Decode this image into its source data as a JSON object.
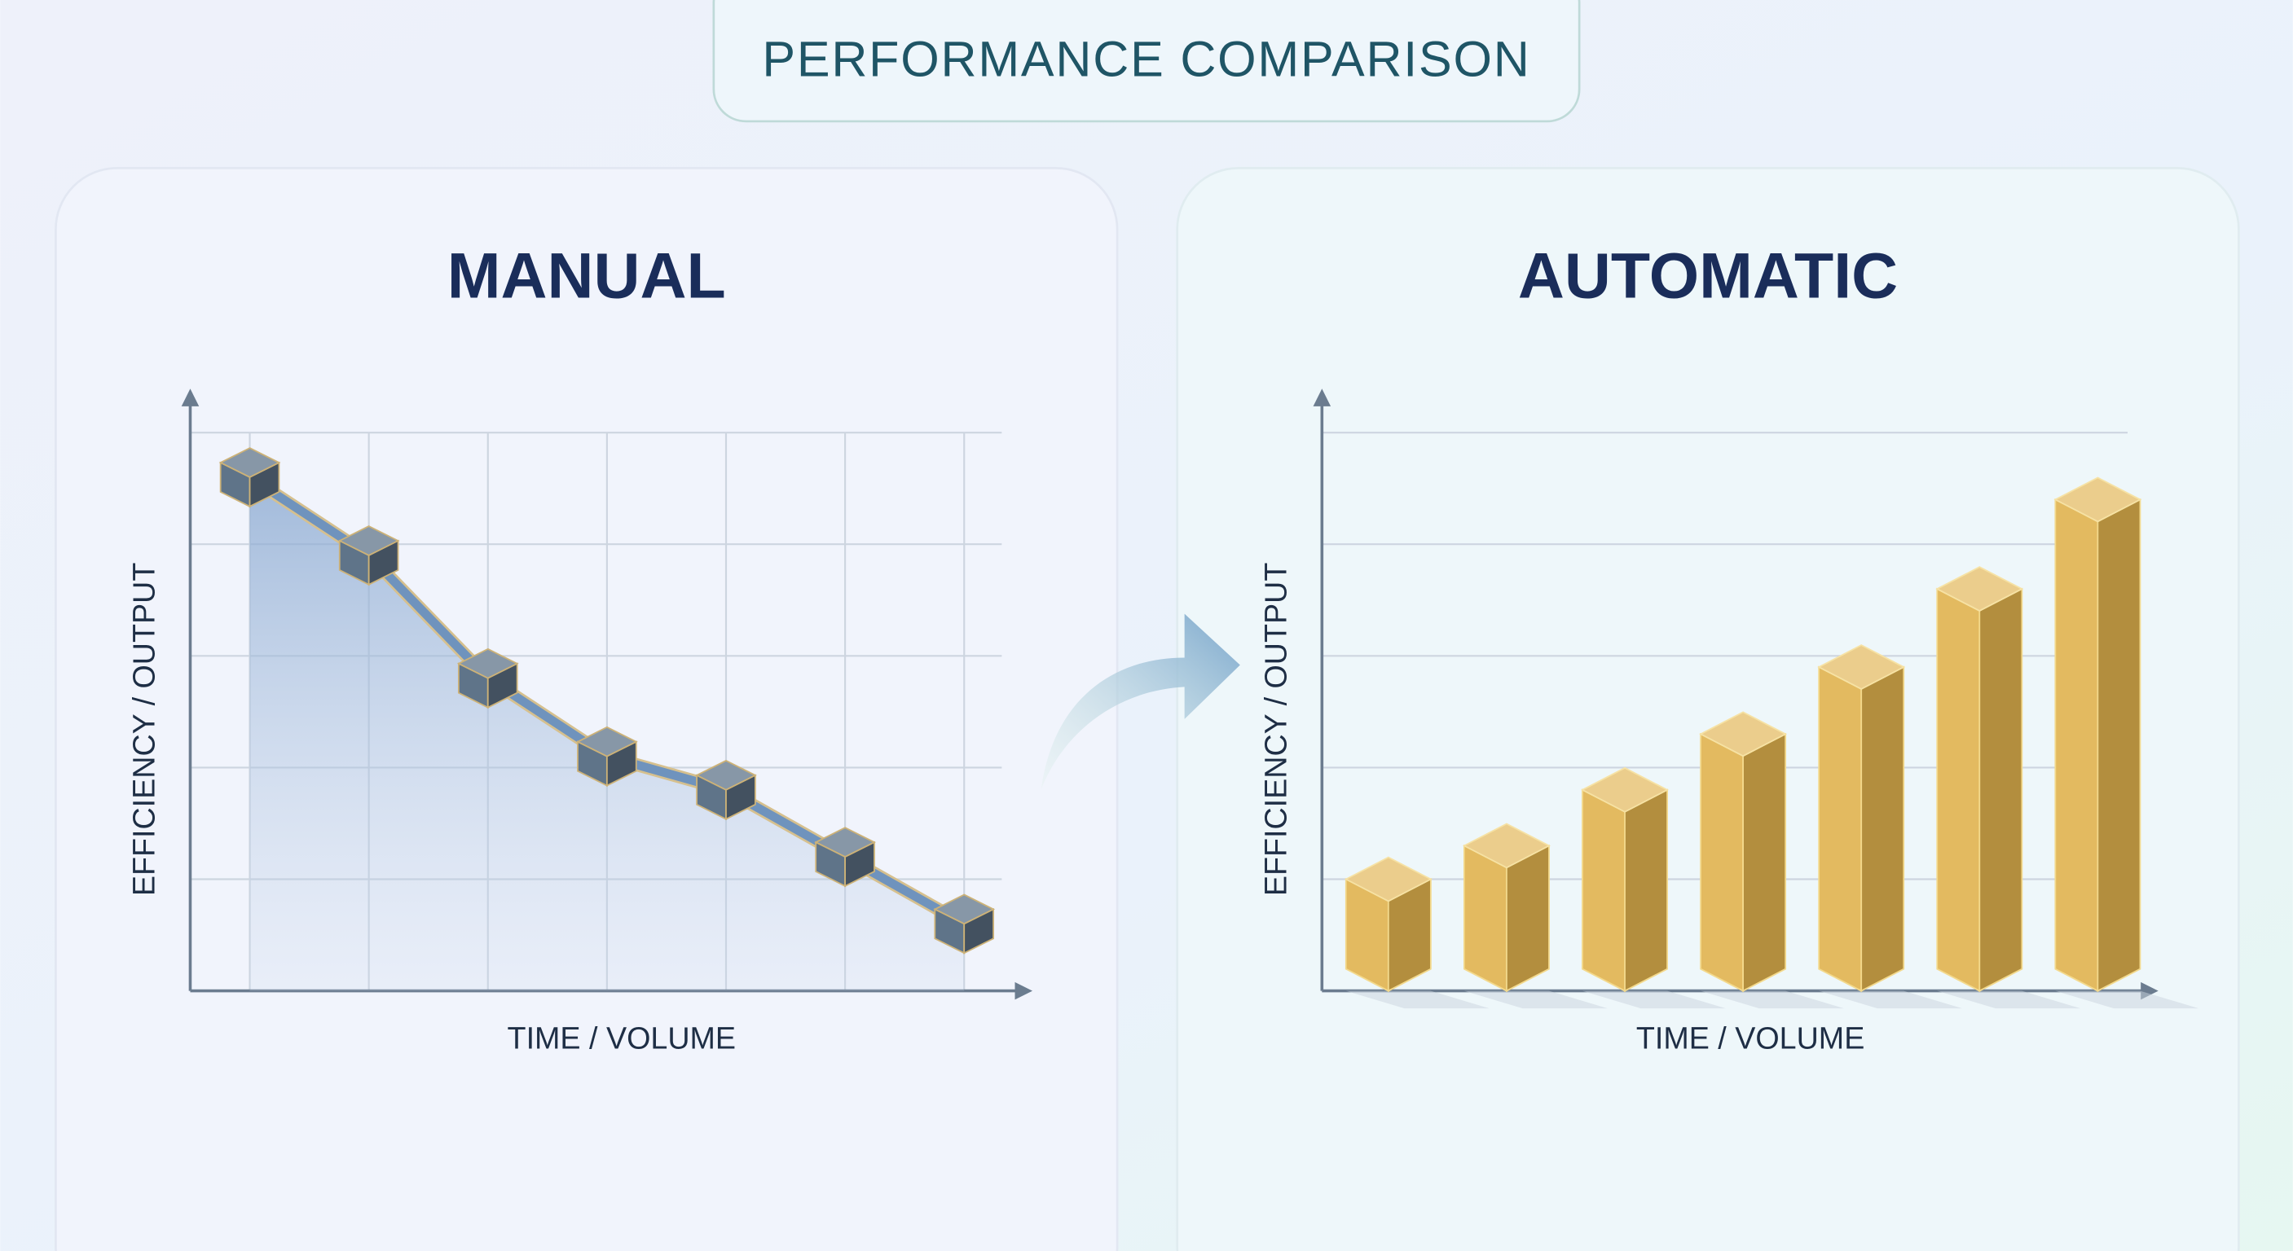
{
  "title": "PERFORMANCE COMPARISON",
  "chart_data": [
    {
      "type": "line",
      "title": "MANUAL",
      "x_label": "TIME / VOLUME",
      "y_label": "EFFICIENCY / OUTPUT",
      "categories": [
        null,
        null,
        null,
        null,
        null,
        null,
        null
      ],
      "values": [
        4.6,
        3.9,
        2.8,
        2.1,
        1.8,
        1.2,
        0.6
      ],
      "color": "#6f93bd",
      "area": true,
      "ylim": [
        0,
        5
      ],
      "ygrid": [
        1,
        2,
        3,
        4,
        5
      ],
      "xgrid": true
    },
    {
      "type": "bar",
      "title": "AUTOMATIC",
      "x_label": "TIME / VOLUME",
      "y_label": "EFFICIENCY / OUTPUT",
      "categories": [
        null,
        null,
        null,
        null,
        null,
        null,
        null
      ],
      "values": [
        1.0,
        1.3,
        1.8,
        2.3,
        2.9,
        3.6,
        4.4
      ],
      "color": "#e0b24e",
      "ylim": [
        0,
        5
      ],
      "ygrid": [
        1,
        2,
        3,
        4,
        5
      ],
      "xgrid": false
    }
  ]
}
